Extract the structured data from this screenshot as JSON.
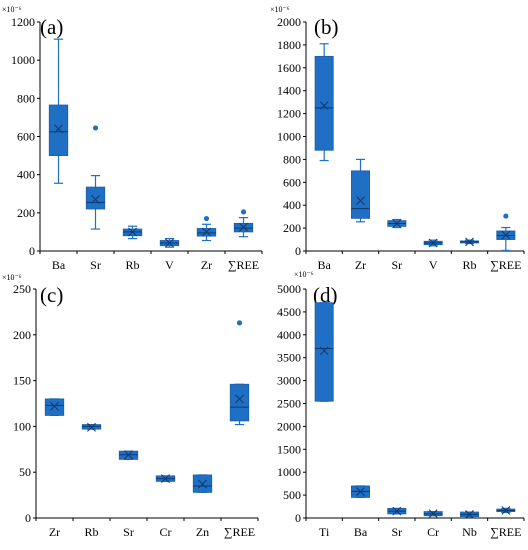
{
  "chart_data": [
    {
      "type": "boxplot",
      "panel_label": "(a)",
      "unit_multiplier": "×10⁻⁶",
      "ylim": [
        0,
        1200
      ],
      "yticks": [
        0,
        200,
        400,
        600,
        800,
        1000,
        1200
      ],
      "categories": [
        "Ba",
        "Sr",
        "Rb",
        "V",
        "Zr",
        "∑REE"
      ],
      "boxes": [
        {
          "category": "Ba",
          "min": 355,
          "q1": 500,
          "median": 625,
          "q3": 765,
          "max": 1110,
          "mean": 640,
          "outliers": []
        },
        {
          "category": "Sr",
          "min": 115,
          "q1": 220,
          "median": 255,
          "q3": 335,
          "max": 395,
          "mean": 270,
          "outliers": [
            645
          ]
        },
        {
          "category": "Rb",
          "min": 65,
          "q1": 80,
          "median": 100,
          "q3": 115,
          "max": 130,
          "mean": 100,
          "outliers": []
        },
        {
          "category": "V",
          "min": 20,
          "q1": 28,
          "median": 42,
          "q3": 55,
          "max": 65,
          "mean": 42,
          "outliers": []
        },
        {
          "category": "Zr",
          "min": 55,
          "q1": 78,
          "median": 95,
          "q3": 118,
          "max": 140,
          "mean": 100,
          "outliers": [
            170
          ]
        },
        {
          "category": "∑REE",
          "min": 75,
          "q1": 100,
          "median": 120,
          "q3": 145,
          "max": 175,
          "mean": 125,
          "outliers": [
            205
          ]
        }
      ]
    },
    {
      "type": "boxplot",
      "panel_label": "(b)",
      "unit_multiplier": "×10⁻⁶",
      "ylim": [
        0,
        2000
      ],
      "yticks": [
        0,
        200,
        400,
        600,
        800,
        1000,
        1200,
        1400,
        1600,
        1800,
        2000
      ],
      "categories": [
        "Ba",
        "Zr",
        "Sr",
        "V",
        "Rb",
        "∑REE"
      ],
      "boxes": [
        {
          "category": "Ba",
          "min": 790,
          "q1": 880,
          "median": 1250,
          "q3": 1700,
          "max": 1810,
          "mean": 1270,
          "outliers": []
        },
        {
          "category": "Zr",
          "min": 255,
          "q1": 285,
          "median": 370,
          "q3": 700,
          "max": 800,
          "mean": 440,
          "outliers": []
        },
        {
          "category": "Sr",
          "min": 205,
          "q1": 215,
          "median": 240,
          "q3": 265,
          "max": 275,
          "mean": 240,
          "outliers": []
        },
        {
          "category": "V",
          "min": 45,
          "q1": 55,
          "median": 70,
          "q3": 85,
          "max": 95,
          "mean": 70,
          "outliers": []
        },
        {
          "category": "Rb",
          "min": 65,
          "q1": 72,
          "median": 80,
          "q3": 88,
          "max": 95,
          "mean": 80,
          "outliers": []
        },
        {
          "category": "∑REE",
          "min": 5,
          "q1": 100,
          "median": 135,
          "q3": 175,
          "max": 205,
          "mean": 140,
          "outliers": [
            305
          ]
        }
      ]
    },
    {
      "type": "boxplot",
      "panel_label": "(c)",
      "unit_multiplier": "×10⁻⁶",
      "ylim": [
        0,
        250
      ],
      "yticks": [
        0,
        50,
        100,
        150,
        200,
        250
      ],
      "categories": [
        "Zr",
        "Rb",
        "Sr",
        "Cr",
        "Zn",
        "∑REE"
      ],
      "boxes": [
        {
          "category": "Zr",
          "min": 112,
          "q1": 112,
          "median": 123,
          "q3": 130,
          "max": 130,
          "mean": 122,
          "outliers": []
        },
        {
          "category": "Rb",
          "min": 97,
          "q1": 97,
          "median": 100,
          "q3": 102,
          "max": 102,
          "mean": 99,
          "outliers": []
        },
        {
          "category": "Sr",
          "min": 64,
          "q1": 64,
          "median": 69,
          "q3": 73,
          "max": 73,
          "mean": 69,
          "outliers": []
        },
        {
          "category": "Cr",
          "min": 40,
          "q1": 40,
          "median": 43,
          "q3": 46,
          "max": 46,
          "mean": 43,
          "outliers": []
        },
        {
          "category": "Zn",
          "min": 28,
          "q1": 28,
          "median": 35,
          "q3": 47,
          "max": 47,
          "mean": 37,
          "outliers": []
        },
        {
          "category": "∑REE",
          "min": 102,
          "q1": 106,
          "median": 121,
          "q3": 146,
          "max": 146,
          "mean": 130,
          "outliers": [
            213
          ]
        }
      ]
    },
    {
      "type": "boxplot",
      "panel_label": "(d)",
      "unit_multiplier": "×10⁻⁶",
      "ylim": [
        0,
        5000
      ],
      "yticks": [
        0,
        500,
        1000,
        1500,
        2000,
        2500,
        3000,
        3500,
        4000,
        4500,
        5000
      ],
      "categories": [
        "Ti",
        "Ba",
        "Sr",
        "Cr",
        "Nb",
        "∑REE"
      ],
      "boxes": [
        {
          "category": "Ti",
          "min": 2550,
          "q1": 2550,
          "median": 3700,
          "q3": 4700,
          "max": 4700,
          "mean": 3650,
          "outliers": []
        },
        {
          "category": "Ba",
          "min": 450,
          "q1": 450,
          "median": 580,
          "q3": 700,
          "max": 700,
          "mean": 575,
          "outliers": []
        },
        {
          "category": "Sr",
          "min": 90,
          "q1": 90,
          "median": 150,
          "q3": 210,
          "max": 210,
          "mean": 150,
          "outliers": []
        },
        {
          "category": "Cr",
          "min": 50,
          "q1": 50,
          "median": 90,
          "q3": 140,
          "max": 140,
          "mean": 95,
          "outliers": []
        },
        {
          "category": "Nb",
          "min": 30,
          "q1": 30,
          "median": 80,
          "q3": 130,
          "max": 130,
          "mean": 80,
          "outliers": []
        },
        {
          "category": "∑REE",
          "min": 120,
          "q1": 140,
          "median": 165,
          "q3": 195,
          "max": 210,
          "mean": 165,
          "outliers": []
        }
      ]
    }
  ],
  "colors": {
    "box_fill": "#1f6fc5",
    "box_stroke": "#1a5ea8",
    "whisker": "#1f6fc5",
    "mean_marker": "#0d3a6e",
    "axis": "#000000"
  }
}
